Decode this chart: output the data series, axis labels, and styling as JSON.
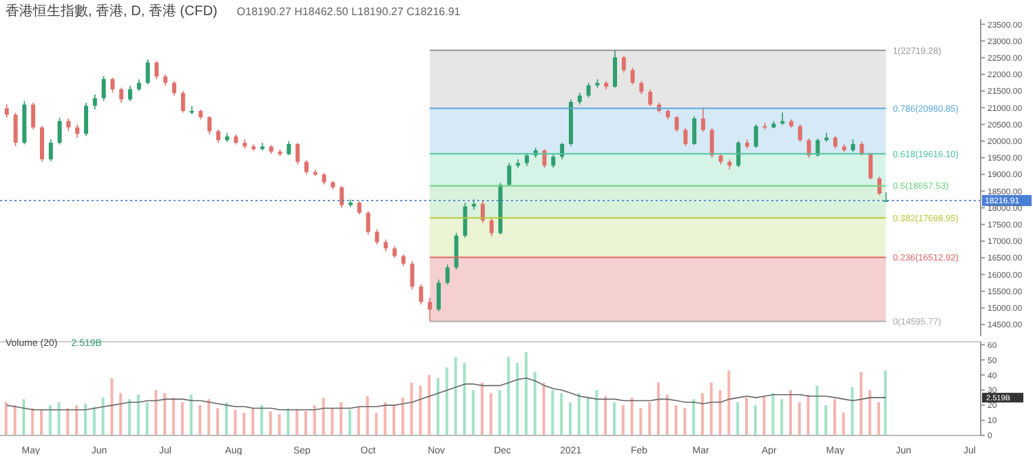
{
  "chart_data": [
    {
      "type": "candlestick",
      "title": "香港恒生指數, 香港, D, 香港 (CFD)",
      "annotations": [
        "O18190.27 H18462.50 L18190.27 C18216.91"
      ],
      "tick_labels": "y",
      "grid": false,
      "legend": false,
      "x": [
        "2020-04-20",
        "2020-04-24",
        "2020-04-28",
        "2020-05-02",
        "2020-05-06",
        "2020-05-10",
        "2020-05-14",
        "2020-05-18",
        "2020-05-22",
        "2020-05-26",
        "2020-05-30",
        "2020-06-03",
        "2020-06-07",
        "2020-06-11",
        "2020-06-15",
        "2020-06-19",
        "2020-06-23",
        "2020-06-27",
        "2020-07-01",
        "2020-07-05",
        "2020-07-09",
        "2020-07-13",
        "2020-07-17",
        "2020-07-21",
        "2020-07-25",
        "2020-07-29",
        "2020-08-02",
        "2020-08-06",
        "2020-08-10",
        "2020-08-14",
        "2020-08-18",
        "2020-08-22",
        "2020-08-26",
        "2020-08-30",
        "2020-09-03",
        "2020-09-07",
        "2020-09-11",
        "2020-09-15",
        "2020-09-19",
        "2020-09-23",
        "2020-09-27",
        "2020-10-01",
        "2020-10-05",
        "2020-10-09",
        "2020-10-13",
        "2020-10-17",
        "2020-10-21",
        "2020-10-25",
        "2020-10-29",
        "2020-11-02",
        "2020-11-06",
        "2020-11-10",
        "2020-11-14",
        "2020-11-18",
        "2020-11-22",
        "2020-11-26",
        "2020-11-30",
        "2020-12-04",
        "2020-12-08",
        "2020-12-12",
        "2020-12-16",
        "2020-12-20",
        "2020-12-24",
        "2020-12-28",
        "2021-01-01",
        "2021-01-05",
        "2021-01-09",
        "2021-01-13",
        "2021-01-17",
        "2021-01-21",
        "2021-01-25",
        "2021-01-29",
        "2021-02-02",
        "2021-02-06",
        "2021-02-10",
        "2021-02-14",
        "2021-02-18",
        "2021-02-22",
        "2021-02-26",
        "2021-03-02",
        "2021-03-06",
        "2021-03-10",
        "2021-03-14",
        "2021-03-18",
        "2021-03-22",
        "2021-03-26",
        "2021-03-30",
        "2021-04-03",
        "2021-04-07",
        "2021-04-11",
        "2021-04-15",
        "2021-04-19",
        "2021-04-23",
        "2021-04-27",
        "2021-05-01",
        "2021-05-05",
        "2021-05-09",
        "2021-05-13",
        "2021-05-17",
        "2021-05-21",
        "2021-05-24"
      ],
      "ohlc": [
        [
          20980,
          21100,
          20700,
          20790
        ],
        [
          20790,
          20850,
          19850,
          19950
        ],
        [
          19950,
          21200,
          19900,
          21095
        ],
        [
          21095,
          21150,
          20350,
          20408
        ],
        [
          20408,
          20450,
          19380,
          19454
        ],
        [
          19454,
          20050,
          19400,
          19950
        ],
        [
          19950,
          20700,
          19900,
          20600
        ],
        [
          20600,
          20680,
          20300,
          20408
        ],
        [
          20408,
          20500,
          20100,
          20217
        ],
        [
          20217,
          21150,
          20150,
          21057
        ],
        [
          21057,
          21400,
          20950,
          21286
        ],
        [
          21286,
          21950,
          21200,
          21859
        ],
        [
          21859,
          21900,
          21450,
          21553
        ],
        [
          21553,
          21600,
          21150,
          21248
        ],
        [
          21248,
          21650,
          21200,
          21553
        ],
        [
          21553,
          21850,
          21500,
          21744
        ],
        [
          21744,
          22450,
          21700,
          22355
        ],
        [
          22355,
          22400,
          21850,
          21935
        ],
        [
          21935,
          22000,
          21650,
          21744
        ],
        [
          21744,
          21800,
          21350,
          21439
        ],
        [
          21439,
          21500,
          20850,
          20904
        ],
        [
          20850,
          21050,
          20800,
          20904
        ],
        [
          20904,
          20950,
          20650,
          20714
        ],
        [
          20714,
          20750,
          20200,
          20294
        ],
        [
          20294,
          20350,
          19950,
          20027
        ],
        [
          20027,
          20250,
          19980,
          20141
        ],
        [
          20141,
          20200,
          19900,
          19950
        ],
        [
          19950,
          20050,
          19780,
          19836
        ],
        [
          19836,
          19900,
          19700,
          19759
        ],
        [
          19759,
          19950,
          19720,
          19836
        ],
        [
          19836,
          19880,
          19620,
          19683
        ],
        [
          19683,
          19750,
          19550,
          19607
        ],
        [
          19607,
          20000,
          19580,
          19912
        ],
        [
          19912,
          19950,
          19300,
          19378
        ],
        [
          19378,
          19420,
          19000,
          19072
        ],
        [
          19072,
          19150,
          18950,
          18996
        ],
        [
          18996,
          19050,
          18700,
          18767
        ],
        [
          18767,
          18800,
          18550,
          18614
        ],
        [
          18614,
          18650,
          18000,
          18080
        ],
        [
          18080,
          18250,
          18030,
          18156
        ],
        [
          18156,
          18200,
          17800,
          17851
        ],
        [
          17851,
          17900,
          17200,
          17278
        ],
        [
          17278,
          17350,
          16900,
          16973
        ],
        [
          16973,
          17050,
          16700,
          16782
        ],
        [
          16782,
          16850,
          16500,
          16553
        ],
        [
          16553,
          16600,
          16250,
          16324
        ],
        [
          16324,
          16400,
          15550,
          15637
        ],
        [
          15637,
          15700,
          15100,
          15179
        ],
        [
          15179,
          15300,
          14595.77,
          14950
        ],
        [
          14950,
          15850,
          14900,
          15752
        ],
        [
          15752,
          16300,
          15700,
          16210
        ],
        [
          16210,
          17250,
          16150,
          17164
        ],
        [
          17164,
          18150,
          17100,
          18042
        ],
        [
          18042,
          18250,
          17950,
          18118
        ],
        [
          18118,
          18200,
          17550,
          17622
        ],
        [
          17622,
          17700,
          17150,
          17240
        ],
        [
          17240,
          18750,
          17200,
          18691
        ],
        [
          18691,
          19350,
          18650,
          19263
        ],
        [
          19263,
          19450,
          19200,
          19340
        ],
        [
          19340,
          19650,
          19250,
          19569
        ],
        [
          19569,
          19800,
          19500,
          19721
        ],
        [
          19721,
          19750,
          19200,
          19263
        ],
        [
          19263,
          19600,
          19200,
          19530
        ],
        [
          19530,
          19950,
          19450,
          19912
        ],
        [
          19912,
          21250,
          19850,
          21172
        ],
        [
          21172,
          21450,
          21100,
          21362
        ],
        [
          21362,
          21750,
          21300,
          21668
        ],
        [
          21668,
          21850,
          21600,
          21744
        ],
        [
          21744,
          21800,
          21550,
          21630
        ],
        [
          21630,
          22719.28,
          21600,
          22508
        ],
        [
          22508,
          22550,
          22050,
          22126
        ],
        [
          22126,
          22200,
          21700,
          21744
        ],
        [
          21744,
          21800,
          21400,
          21477
        ],
        [
          21477,
          21550,
          21050,
          21095
        ],
        [
          21095,
          21150,
          20850,
          20904
        ],
        [
          20904,
          20950,
          20650,
          20714
        ],
        [
          20714,
          20750,
          20280,
          20332
        ],
        [
          20332,
          20400,
          19850,
          19912
        ],
        [
          19912,
          20750,
          19880,
          20676
        ],
        [
          20676,
          21000,
          20280,
          20332
        ],
        [
          20332,
          20380,
          19500,
          19569
        ],
        [
          19569,
          19620,
          19300,
          19378
        ],
        [
          19378,
          19450,
          19150,
          19263
        ],
        [
          19263,
          20000,
          19220,
          19950
        ],
        [
          19950,
          20050,
          19780,
          19836
        ],
        [
          19836,
          20500,
          19800,
          20446
        ],
        [
          20446,
          20550,
          20350,
          20408
        ],
        [
          20408,
          20600,
          20380,
          20523
        ],
        [
          20523,
          20850,
          20480,
          20600
        ],
        [
          20600,
          20650,
          20400,
          20446
        ],
        [
          20446,
          20500,
          19980,
          20027
        ],
        [
          20027,
          20080,
          19500,
          19569
        ],
        [
          19569,
          20080,
          19530,
          20027
        ],
        [
          20027,
          20250,
          19980,
          20103
        ],
        [
          20103,
          20150,
          19780,
          19836
        ],
        [
          19836,
          19900,
          19680,
          19721
        ],
        [
          19721,
          20050,
          19680,
          19912
        ],
        [
          19912,
          19980,
          19560,
          19607
        ],
        [
          19607,
          19650,
          18850,
          18881
        ],
        [
          18881,
          18930,
          18380,
          18424
        ],
        [
          18190.27,
          18462.5,
          18190.27,
          18216.91
        ]
      ],
      "colors": [
        "#e0706a",
        "#e0706a",
        "#2e9e6e",
        "#e0706a",
        "#e0706a",
        "#2e9e6e",
        "#2e9e6e",
        "#e0706a",
        "#e0706a",
        "#2e9e6e",
        "#2e9e6e",
        "#2e9e6e",
        "#e0706a",
        "#e0706a",
        "#2e9e6e",
        "#2e9e6e",
        "#2e9e6e",
        "#e0706a",
        "#e0706a",
        "#e0706a",
        "#e0706a",
        "#2e9e6e",
        "#e0706a",
        "#e0706a",
        "#e0706a",
        "#2e9e6e",
        "#e0706a",
        "#e0706a",
        "#e0706a",
        "#2e9e6e",
        "#e0706a",
        "#e0706a",
        "#2e9e6e",
        "#e0706a",
        "#e0706a",
        "#e0706a",
        "#e0706a",
        "#e0706a",
        "#e0706a",
        "#2e9e6e",
        "#e0706a",
        "#e0706a",
        "#e0706a",
        "#e0706a",
        "#e0706a",
        "#e0706a",
        "#e0706a",
        "#e0706a",
        "#e0706a",
        "#2e9e6e",
        "#2e9e6e",
        "#2e9e6e",
        "#2e9e6e",
        "#2e9e6e",
        "#e0706a",
        "#e0706a",
        "#2e9e6e",
        "#2e9e6e",
        "#2e9e6e",
        "#2e9e6e",
        "#2e9e6e",
        "#e0706a",
        "#2e9e6e",
        "#2e9e6e",
        "#2e9e6e",
        "#2e9e6e",
        "#2e9e6e",
        "#2e9e6e",
        "#e0706a",
        "#2e9e6e",
        "#e0706a",
        "#e0706a",
        "#e0706a",
        "#e0706a",
        "#e0706a",
        "#e0706a",
        "#e0706a",
        "#e0706a",
        "#2e9e6e",
        "#e0706a",
        "#e0706a",
        "#e0706a",
        "#e0706a",
        "#2e9e6e",
        "#e0706a",
        "#2e9e6e",
        "#e0706a",
        "#2e9e6e",
        "#2e9e6e",
        "#e0706a",
        "#e0706a",
        "#e0706a",
        "#2e9e6e",
        "#2e9e6e",
        "#e0706a",
        "#e0706a",
        "#2e9e6e",
        "#e0706a",
        "#e0706a",
        "#e0706a",
        "#2e9e6e"
      ],
      "xlim": [
        "2020-04-17",
        "2021-07-06"
      ],
      "ylim": [
        14150,
        23650
      ],
      "yticks": [
        {
          "value": 14500,
          "label": "14500.00"
        },
        {
          "value": 15000,
          "label": "15000.00"
        },
        {
          "value": 15500,
          "label": "15500.00"
        },
        {
          "value": 16000,
          "label": "16000.00"
        },
        {
          "value": 16500,
          "label": "16500.00"
        },
        {
          "value": 17000,
          "label": "17000.00"
        },
        {
          "value": 17500,
          "label": "17500.00"
        },
        {
          "value": 18000,
          "label": "18000.00"
        },
        {
          "value": 18500,
          "label": "18500.00"
        },
        {
          "value": 19000,
          "label": "19000.00"
        },
        {
          "value": 19500,
          "label": "19500.00"
        },
        {
          "value": 20000,
          "label": "20000.00"
        },
        {
          "value": 20500,
          "label": "20500.00"
        },
        {
          "value": 21000,
          "label": "21000.00"
        },
        {
          "value": 21500,
          "label": "21500.00"
        },
        {
          "value": 22000,
          "label": "22000.00"
        },
        {
          "value": 22500,
          "label": "22500.00"
        },
        {
          "value": 23000,
          "label": "23000.00"
        },
        {
          "value": 23500,
          "label": "23500.00"
        }
      ],
      "bands": [
        {
          "axis": "y",
          "from": 14595.77,
          "to": 16512.92,
          "color": "#f5d0d0"
        },
        {
          "axis": "y",
          "from": 16512.92,
          "to": 17698.95,
          "color": "#ecf4d6"
        },
        {
          "axis": "y",
          "from": 17698.95,
          "to": 18657.53,
          "color": "#d8f2dc"
        },
        {
          "axis": "y",
          "from": 18657.53,
          "to": 19616.1,
          "color": "#d6f3e8"
        },
        {
          "axis": "y",
          "from": 19616.1,
          "to": 20980.85,
          "color": "#d6e9f6"
        },
        {
          "axis": "y",
          "from": 20980.85,
          "to": 22719.28,
          "color": "#e6e6e6"
        }
      ],
      "ref_lines": [
        {
          "axis": "y",
          "value": 14595.77,
          "label": "0(14595.77)",
          "color": "#aaaaaa"
        },
        {
          "axis": "y",
          "value": 16512.92,
          "label": "0.236(16512.92)",
          "color": "#e06666"
        },
        {
          "axis": "y",
          "value": 17698.95,
          "label": "0.382(17698.95)",
          "color": "#b7c93a"
        },
        {
          "axis": "y",
          "value": 18657.53,
          "label": "0.5(18657.53)",
          "color": "#6fcf7e"
        },
        {
          "axis": "y",
          "value": 19616.1,
          "label": "0.618(19616.10)",
          "color": "#4fc3a1"
        },
        {
          "axis": "y",
          "value": 20980.85,
          "label": "0.786(20980.85)",
          "color": "#5aa9e0"
        },
        {
          "axis": "y",
          "value": 22719.28,
          "label": "1(22719.28)",
          "color": "#999999"
        },
        {
          "axis": "y",
          "value": 18216.91,
          "label": "18216.91",
          "color": "#4a7fd6",
          "line_style": "dotted"
        }
      ]
    },
    {
      "type": "bar",
      "title": "Volume (20)",
      "annotations": [
        "2.519B"
      ],
      "grid": false,
      "legend": false,
      "x": [
        "2020-04-20",
        "2020-04-24",
        "2020-04-28",
        "2020-05-02",
        "2020-05-06",
        "2020-05-10",
        "2020-05-14",
        "2020-05-18",
        "2020-05-22",
        "2020-05-26",
        "2020-05-30",
        "2020-06-03",
        "2020-06-07",
        "2020-06-11",
        "2020-06-15",
        "2020-06-19",
        "2020-06-23",
        "2020-06-27",
        "2020-07-01",
        "2020-07-05",
        "2020-07-09",
        "2020-07-13",
        "2020-07-17",
        "2020-07-21",
        "2020-07-25",
        "2020-07-29",
        "2020-08-02",
        "2020-08-06",
        "2020-08-10",
        "2020-08-14",
        "2020-08-18",
        "2020-08-22",
        "2020-08-26",
        "2020-08-30",
        "2020-09-03",
        "2020-09-07",
        "2020-09-11",
        "2020-09-15",
        "2020-09-19",
        "2020-09-23",
        "2020-09-27",
        "2020-10-01",
        "2020-10-05",
        "2020-10-09",
        "2020-10-13",
        "2020-10-17",
        "2020-10-21",
        "2020-10-25",
        "2020-10-29",
        "2020-11-02",
        "2020-11-06",
        "2020-11-10",
        "2020-11-14",
        "2020-11-18",
        "2020-11-22",
        "2020-11-26",
        "2020-11-30",
        "2020-12-04",
        "2020-12-08",
        "2020-12-12",
        "2020-12-16",
        "2020-12-20",
        "2020-12-24",
        "2020-12-28",
        "2021-01-01",
        "2021-01-05",
        "2021-01-09",
        "2021-01-13",
        "2021-01-17",
        "2021-01-21",
        "2021-01-25",
        "2021-01-29",
        "2021-02-02",
        "2021-02-06",
        "2021-02-10",
        "2021-02-14",
        "2021-02-18",
        "2021-02-22",
        "2021-02-26",
        "2021-03-02",
        "2021-03-06",
        "2021-03-10",
        "2021-03-14",
        "2021-03-18",
        "2021-03-22",
        "2021-03-26",
        "2021-03-30",
        "2021-04-03",
        "2021-04-07",
        "2021-04-11",
        "2021-04-15",
        "2021-04-19",
        "2021-04-23",
        "2021-04-27",
        "2021-05-01",
        "2021-05-05",
        "2021-05-09",
        "2021-05-13",
        "2021-05-17",
        "2021-05-21",
        "2021-05-24"
      ],
      "series": [
        {
          "type": "bar",
          "values": [
            22,
            20,
            24,
            18,
            17,
            20,
            22,
            18,
            20,
            21,
            19,
            25,
            38,
            28,
            24,
            27,
            22,
            30,
            28,
            25,
            22,
            27,
            20,
            24,
            18,
            22,
            17,
            15,
            18,
            20,
            16,
            14,
            18,
            17,
            16,
            20,
            25,
            18,
            22,
            17,
            19,
            26,
            15,
            22,
            20,
            25,
            35,
            33,
            40,
            38,
            45,
            52,
            48,
            30,
            35,
            28,
            30,
            52,
            48,
            55,
            42,
            35,
            30,
            28,
            22,
            28,
            25,
            30,
            26,
            22,
            20,
            25,
            18,
            22,
            35,
            27,
            20,
            18,
            24,
            28,
            35,
            30,
            43,
            22,
            25,
            20,
            26,
            28,
            24,
            30,
            22,
            27,
            33,
            20,
            24,
            15,
            32,
            42,
            30,
            22,
            43
          ],
          "colors": [
            "#f5b5b0",
            "#f5b5b0",
            "#a3e2c6",
            "#f5b5b0",
            "#f5b5b0",
            "#a3e2c6",
            "#a3e2c6",
            "#f5b5b0",
            "#f5b5b0",
            "#a3e2c6",
            "#a3e2c6",
            "#a3e2c6",
            "#f5b5b0",
            "#f5b5b0",
            "#a3e2c6",
            "#a3e2c6",
            "#a3e2c6",
            "#f5b5b0",
            "#f5b5b0",
            "#f5b5b0",
            "#f5b5b0",
            "#a3e2c6",
            "#f5b5b0",
            "#f5b5b0",
            "#f5b5b0",
            "#a3e2c6",
            "#f5b5b0",
            "#f5b5b0",
            "#f5b5b0",
            "#a3e2c6",
            "#f5b5b0",
            "#f5b5b0",
            "#a3e2c6",
            "#f5b5b0",
            "#f5b5b0",
            "#f5b5b0",
            "#f5b5b0",
            "#f5b5b0",
            "#f5b5b0",
            "#a3e2c6",
            "#f5b5b0",
            "#f5b5b0",
            "#f5b5b0",
            "#f5b5b0",
            "#f5b5b0",
            "#f5b5b0",
            "#f5b5b0",
            "#f5b5b0",
            "#f5b5b0",
            "#a3e2c6",
            "#a3e2c6",
            "#a3e2c6",
            "#a3e2c6",
            "#a3e2c6",
            "#f5b5b0",
            "#f5b5b0",
            "#a3e2c6",
            "#a3e2c6",
            "#a3e2c6",
            "#a3e2c6",
            "#a3e2c6",
            "#f5b5b0",
            "#a3e2c6",
            "#a3e2c6",
            "#a3e2c6",
            "#a3e2c6",
            "#a3e2c6",
            "#a3e2c6",
            "#f5b5b0",
            "#a3e2c6",
            "#f5b5b0",
            "#f5b5b0",
            "#f5b5b0",
            "#f5b5b0",
            "#f5b5b0",
            "#f5b5b0",
            "#f5b5b0",
            "#f5b5b0",
            "#a3e2c6",
            "#f5b5b0",
            "#f5b5b0",
            "#f5b5b0",
            "#f5b5b0",
            "#a3e2c6",
            "#f5b5b0",
            "#a3e2c6",
            "#f5b5b0",
            "#a3e2c6",
            "#a3e2c6",
            "#f5b5b0",
            "#f5b5b0",
            "#f5b5b0",
            "#a3e2c6",
            "#a3e2c6",
            "#f5b5b0",
            "#f5b5b0",
            "#a3e2c6",
            "#f5b5b0",
            "#f5b5b0",
            "#f5b5b0",
            "#a3e2c6"
          ]
        },
        {
          "type": "line",
          "color": "#666666",
          "values": [
            20,
            19,
            18,
            17,
            17,
            17,
            17,
            17,
            17,
            17,
            18,
            19,
            20,
            21,
            22,
            22,
            23,
            23,
            24,
            24,
            24,
            23,
            23,
            22,
            21,
            20,
            19,
            19,
            18,
            18,
            18,
            17,
            17,
            17,
            17,
            17,
            18,
            18,
            18,
            18,
            19,
            19,
            19,
            20,
            20,
            21,
            22,
            24,
            26,
            28,
            30,
            32,
            34,
            34,
            33,
            33,
            33,
            35,
            37,
            38,
            36,
            33,
            31,
            30,
            28,
            26,
            25,
            24,
            24,
            24,
            23,
            23,
            23,
            23,
            24,
            24,
            23,
            22,
            22,
            21,
            22,
            22,
            24,
            25,
            26,
            25,
            26,
            27,
            27,
            27,
            27,
            26,
            26,
            26,
            25,
            24,
            23,
            24,
            25,
            25,
            25
          ]
        }
      ],
      "xlim": [
        "2020-04-17",
        "2021-07-06"
      ],
      "xticks": [
        {
          "value": "2020-05-01",
          "label": "May"
        },
        {
          "value": "2020-06-01",
          "label": "Jun"
        },
        {
          "value": "2020-07-01",
          "label": "Jul"
        },
        {
          "value": "2020-08-01",
          "label": "Aug"
        },
        {
          "value": "2020-09-01",
          "label": "Sep"
        },
        {
          "value": "2020-10-01",
          "label": "Oct"
        },
        {
          "value": "2020-11-01",
          "label": "Nov"
        },
        {
          "value": "2020-12-01",
          "label": "Dec"
        },
        {
          "value": "2021-01-01",
          "label": "2021"
        },
        {
          "value": "2021-02-01",
          "label": "Feb"
        },
        {
          "value": "2021-03-01",
          "label": "Mar"
        },
        {
          "value": "2021-04-01",
          "label": "Apr"
        },
        {
          "value": "2021-05-01",
          "label": "May"
        },
        {
          "value": "2021-06-01",
          "label": "Jun"
        },
        {
          "value": "2021-07-01",
          "label": "Jul"
        }
      ],
      "ylim": [
        0,
        62
      ],
      "yticks": [
        0,
        10,
        20,
        30,
        40,
        50,
        60
      ]
    }
  ]
}
